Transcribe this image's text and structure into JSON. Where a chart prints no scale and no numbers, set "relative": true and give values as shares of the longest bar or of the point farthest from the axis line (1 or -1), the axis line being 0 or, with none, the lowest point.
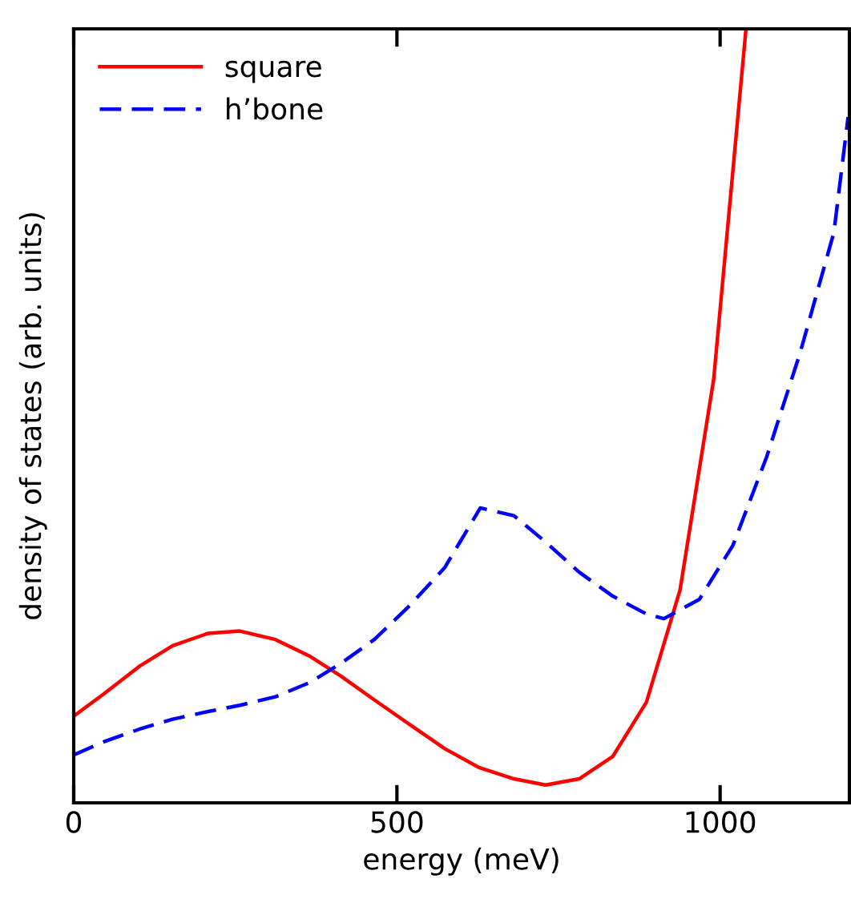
{
  "chart_data": {
    "type": "line",
    "xlabel": "energy (meV)",
    "ylabel": "density of states (arb. units)",
    "relative": true,
    "xlim": [
      0,
      1200
    ],
    "xticks": [
      0,
      500,
      1000
    ],
    "grid": false,
    "legend": "top left",
    "marker": "none",
    "series": [
      {
        "name": "square",
        "color": "#ff0000",
        "line_style": "solid",
        "x": [
          0,
          47,
          101,
          153,
          208,
          257,
          312,
          364,
          413,
          465,
          520,
          574,
          626,
          681,
          730,
          782,
          834,
          886,
          938,
          990,
          1040
        ],
        "values": [
          0.112,
          0.141,
          0.176,
          0.203,
          0.219,
          0.222,
          0.211,
          0.19,
          0.164,
          0.133,
          0.101,
          0.07,
          0.046,
          0.031,
          0.023,
          0.031,
          0.06,
          0.13,
          0.275,
          0.547,
          1.0
        ]
      },
      {
        "name": "h’bone",
        "color": "#0000ff",
        "line_style": "dashed",
        "x": [
          0,
          47,
          101,
          153,
          208,
          257,
          312,
          364,
          413,
          465,
          520,
          574,
          629,
          681,
          730,
          782,
          834,
          886,
          913,
          968,
          1020,
          1072,
          1124,
          1176,
          1198
        ],
        "values": [
          0.062,
          0.079,
          0.095,
          0.108,
          0.118,
          0.126,
          0.137,
          0.155,
          0.18,
          0.211,
          0.255,
          0.304,
          0.381,
          0.371,
          0.337,
          0.298,
          0.267,
          0.244,
          0.238,
          0.263,
          0.333,
          0.447,
          0.582,
          0.737,
          0.886
        ]
      }
    ]
  }
}
